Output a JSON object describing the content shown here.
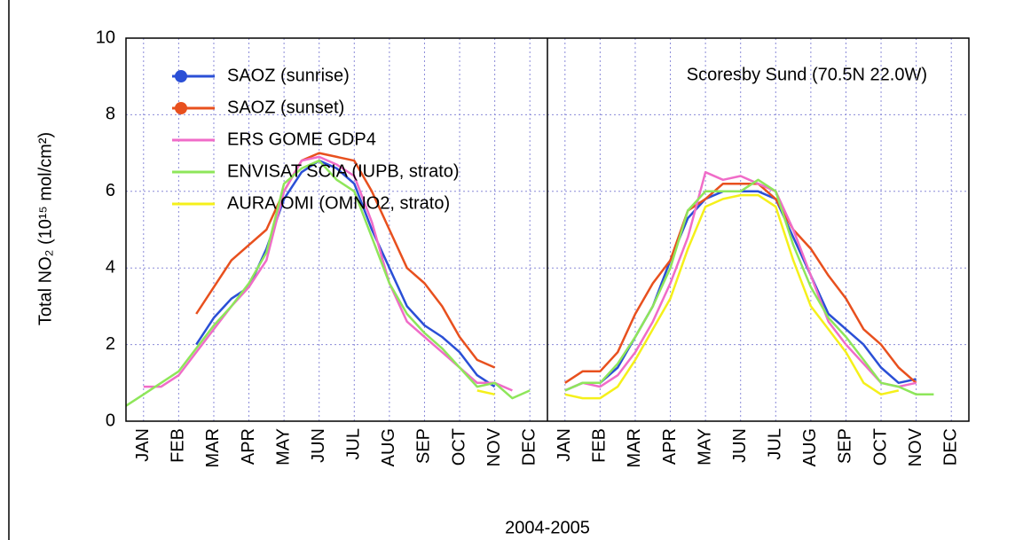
{
  "chart_data": {
    "type": "line",
    "x_label": "2004-2005",
    "y_label": "Total NO₂ (10¹⁵ mol/cm²)",
    "annotation": "Scoresby Sund (70.5N 22.0W)",
    "x": [
      0,
      0.5,
      1,
      1.5,
      2,
      2.5,
      3,
      3.5,
      4,
      4.5,
      5,
      5.5,
      6,
      6.5,
      7,
      7.5,
      8,
      8.5,
      9,
      9.5,
      10,
      10.5,
      11,
      11.5,
      12,
      12.5,
      13,
      13.5,
      14,
      14.5,
      15,
      15.5,
      16,
      16.5,
      17,
      17.5,
      18,
      18.5,
      19,
      19.5,
      20,
      20.5,
      21,
      21.5,
      22,
      22.5,
      23,
      23.5,
      24
    ],
    "xlim": [
      0,
      24
    ],
    "xticks": [
      {
        "value": 0.5,
        "label": "JAN"
      },
      {
        "value": 1.5,
        "label": "FEB"
      },
      {
        "value": 2.5,
        "label": "MAR"
      },
      {
        "value": 3.5,
        "label": "APR"
      },
      {
        "value": 4.5,
        "label": "MAY"
      },
      {
        "value": 5.5,
        "label": "JUN"
      },
      {
        "value": 6.5,
        "label": "JUL"
      },
      {
        "value": 7.5,
        "label": "AUG"
      },
      {
        "value": 8.5,
        "label": "SEP"
      },
      {
        "value": 9.5,
        "label": "OCT"
      },
      {
        "value": 10.5,
        "label": "NOV"
      },
      {
        "value": 11.5,
        "label": "DEC"
      },
      {
        "value": 12.5,
        "label": "JAN"
      },
      {
        "value": 13.5,
        "label": "FEB"
      },
      {
        "value": 14.5,
        "label": "MAR"
      },
      {
        "value": 15.5,
        "label": "APR"
      },
      {
        "value": 16.5,
        "label": "MAY"
      },
      {
        "value": 17.5,
        "label": "JUN"
      },
      {
        "value": 18.5,
        "label": "JUL"
      },
      {
        "value": 19.5,
        "label": "AUG"
      },
      {
        "value": 20.5,
        "label": "SEP"
      },
      {
        "value": 21.5,
        "label": "OCT"
      },
      {
        "value": 22.5,
        "label": "NOV"
      },
      {
        "value": 23.5,
        "label": "DEC"
      }
    ],
    "ylim": [
      0,
      10
    ],
    "yticks": [
      0,
      2,
      4,
      6,
      8,
      10
    ],
    "grid": true,
    "legend": "upper left",
    "series": [
      {
        "name": "SAOZ (sunrise)",
        "color": "#2a4fd6",
        "marker": "circle",
        "values": [
          null,
          null,
          null,
          null,
          2.0,
          2.7,
          3.2,
          3.5,
          4.5,
          5.8,
          6.5,
          6.8,
          6.6,
          6.2,
          5.0,
          4.0,
          3.0,
          2.5,
          2.2,
          1.8,
          1.2,
          0.9,
          null,
          null,
          null,
          0.8,
          1.0,
          1.0,
          1.4,
          2.2,
          3.0,
          4.2,
          5.3,
          5.8,
          6.0,
          6.0,
          6.0,
          5.8,
          4.8,
          3.8,
          2.8,
          2.4,
          2.0,
          1.4,
          1.0,
          1.1,
          null,
          null,
          null
        ]
      },
      {
        "name": "SAOZ (sunset)",
        "color": "#e8501e",
        "marker": "circle",
        "values": [
          null,
          null,
          null,
          null,
          2.8,
          3.5,
          4.2,
          4.6,
          5.0,
          6.0,
          6.8,
          7.0,
          6.9,
          6.8,
          6.0,
          5.0,
          4.0,
          3.6,
          3.0,
          2.2,
          1.6,
          1.4,
          null,
          null,
          null,
          1.0,
          1.3,
          1.3,
          1.8,
          2.8,
          3.6,
          4.2,
          5.5,
          5.8,
          6.2,
          6.2,
          6.2,
          5.8,
          5.0,
          4.5,
          3.8,
          3.2,
          2.4,
          2.0,
          1.4,
          1.0,
          null,
          null,
          null
        ]
      },
      {
        "name": "ERS GOME GDP4",
        "color": "#f06cc8",
        "values": [
          null,
          0.9,
          0.9,
          1.2,
          1.8,
          2.4,
          3.0,
          3.5,
          4.2,
          6.0,
          6.8,
          6.9,
          6.7,
          6.4,
          5.2,
          3.6,
          2.6,
          2.2,
          1.8,
          1.4,
          1.0,
          1.0,
          0.8,
          null,
          null,
          0.8,
          1.0,
          0.9,
          1.2,
          1.8,
          2.6,
          3.6,
          4.8,
          6.5,
          6.3,
          6.4,
          6.2,
          6.0,
          5.0,
          3.8,
          2.6,
          2.0,
          1.5,
          1.0,
          0.9,
          1.0,
          null,
          null,
          null
        ]
      },
      {
        "name": "ENVISAT SCIA (IUPB, strato)",
        "color": "#8ee65a",
        "values": [
          0.4,
          0.7,
          1.0,
          1.3,
          1.9,
          2.5,
          3.0,
          3.6,
          4.4,
          6.2,
          6.6,
          6.8,
          6.3,
          6.0,
          4.8,
          3.6,
          2.8,
          2.3,
          1.9,
          1.4,
          0.9,
          1.0,
          0.6,
          0.8,
          null,
          0.8,
          1.0,
          1.0,
          1.5,
          2.2,
          3.0,
          4.0,
          5.5,
          6.0,
          6.0,
          6.0,
          6.3,
          6.0,
          4.6,
          3.5,
          2.7,
          2.2,
          1.6,
          1.0,
          0.9,
          0.7,
          0.7,
          null,
          null
        ]
      },
      {
        "name": "AURA OMI (OMNO2, strato)",
        "color": "#f5f01a",
        "values": [
          null,
          null,
          null,
          null,
          null,
          null,
          null,
          null,
          null,
          null,
          null,
          null,
          null,
          null,
          null,
          null,
          null,
          null,
          null,
          null,
          0.8,
          0.7,
          null,
          null,
          null,
          0.7,
          0.6,
          0.6,
          0.9,
          1.6,
          2.4,
          3.2,
          4.5,
          5.6,
          5.8,
          5.9,
          5.9,
          5.6,
          4.2,
          3.0,
          2.4,
          1.8,
          1.0,
          0.7,
          0.8,
          null,
          null,
          null,
          null
        ]
      }
    ]
  }
}
